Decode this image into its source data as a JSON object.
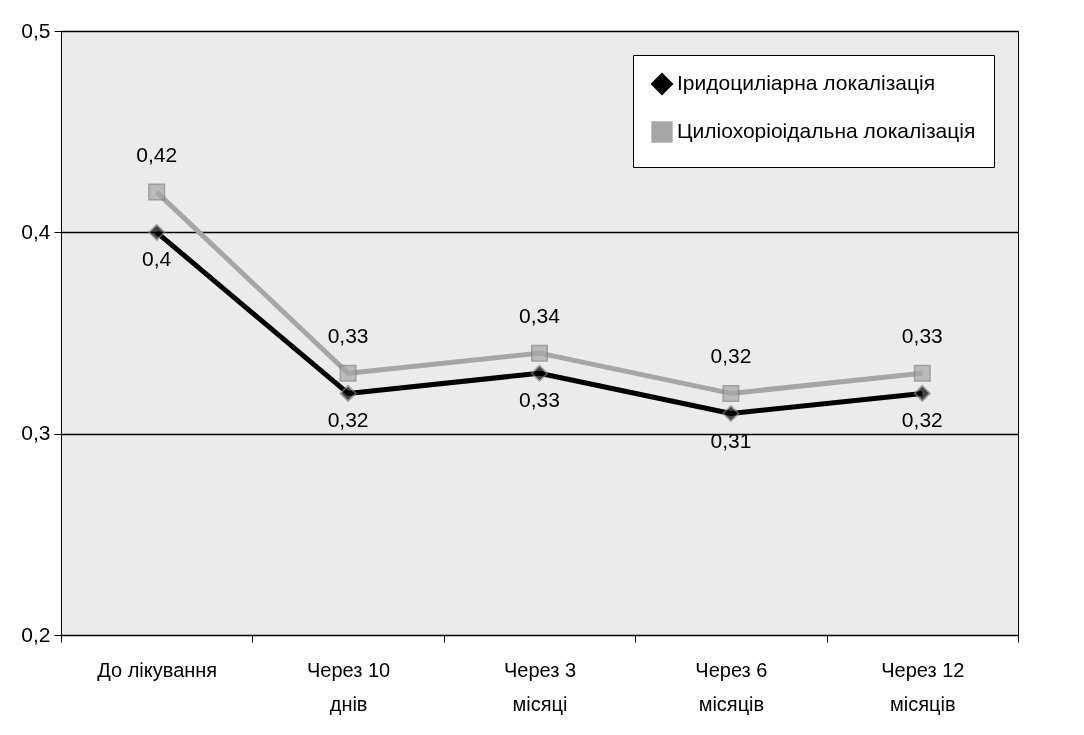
{
  "chart_data": {
    "type": "line",
    "categories": [
      "До лікування",
      "Через 10 днів",
      "Через 3 місяці",
      "Через 6 місяців",
      "Через 12 місяців"
    ],
    "series": [
      {
        "name": "Іридоциліарна локалізація",
        "color": "#000000",
        "marker": "diamond",
        "values": [
          0.4,
          0.32,
          0.33,
          0.31,
          0.32
        ],
        "value_labels": [
          "0,4",
          "0,32",
          "0,33",
          "0,31",
          "0,32"
        ]
      },
      {
        "name": "Циліохоріоідальна локалізація",
        "color": "#a6a6a6",
        "marker": "square",
        "values": [
          0.42,
          0.33,
          0.34,
          0.32,
          0.33
        ],
        "value_labels": [
          "0,42",
          "0,33",
          "0,34",
          "0,32",
          "0,33"
        ]
      }
    ],
    "ylim": [
      0.2,
      0.5
    ],
    "yticks": [
      {
        "value": 0.2,
        "label": "0,2"
      },
      {
        "value": 0.3,
        "label": "0,3"
      },
      {
        "value": 0.4,
        "label": "0,4"
      },
      {
        "value": 0.5,
        "label": "0,5"
      }
    ],
    "grid": "y",
    "legend": "top right"
  }
}
